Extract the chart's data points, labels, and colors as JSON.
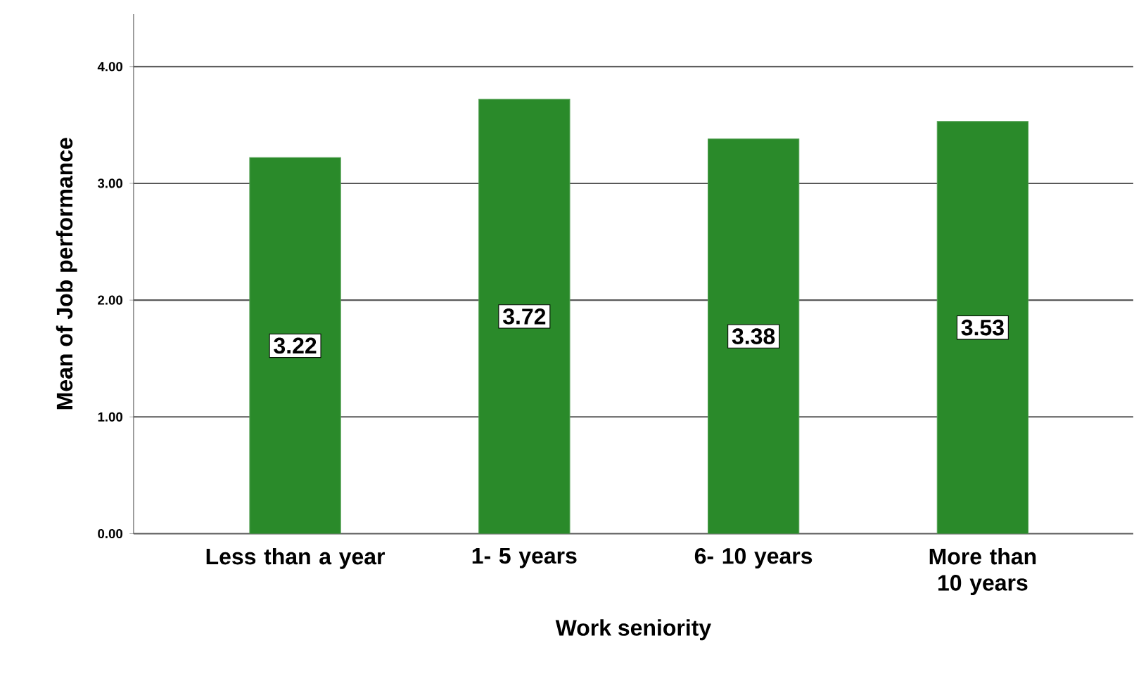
{
  "chart_data": {
    "type": "bar",
    "xlabel": "Work seniority",
    "ylabel": "Mean of Job performance",
    "categories": [
      "Less than a year",
      "1- 5 years",
      "6- 10 years",
      "More than 10 years"
    ],
    "values": [
      3.22,
      3.72,
      3.38,
      3.53
    ],
    "color": "#2a8a2a",
    "ylim": [
      0,
      4.45
    ],
    "yticks": [
      {
        "value": 0,
        "label": "0.00"
      },
      {
        "value": 1,
        "label": "1.00"
      },
      {
        "value": 2,
        "label": "2.00"
      },
      {
        "value": 3,
        "label": "3.00"
      },
      {
        "value": 4,
        "label": "4.00"
      }
    ],
    "grid": "y",
    "data_labels": true
  }
}
